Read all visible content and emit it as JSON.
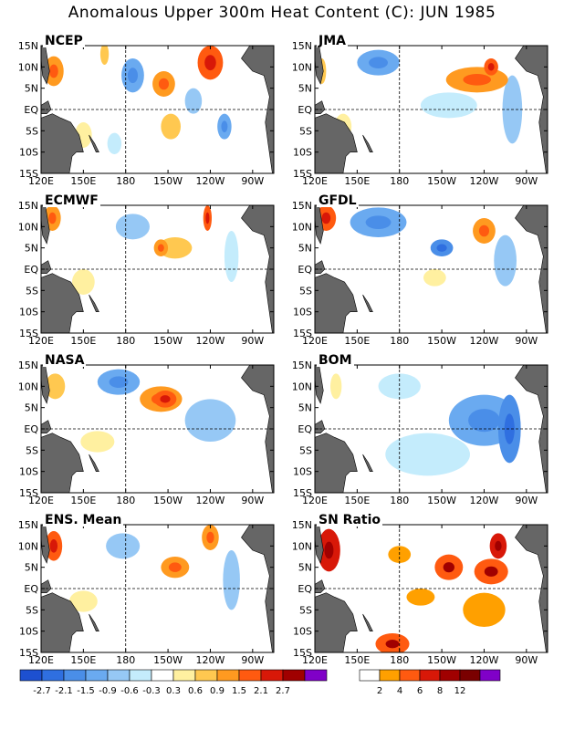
{
  "title": "Anomalous Upper 300m Heat Content (C): JUN 1985",
  "lat_ticks": [
    "15N",
    "10N",
    "5N",
    "EQ",
    "5S",
    "10S",
    "15S"
  ],
  "lon_ticks": [
    "120E",
    "150E",
    "180",
    "150W",
    "120W",
    "90W"
  ],
  "panels": [
    {
      "name": "NCEP",
      "blobs": [
        {
          "lon": 129,
          "lat": 9,
          "rx": 7,
          "ry": 3.5,
          "level": 0.9
        },
        {
          "lon": 165,
          "lat": 13,
          "rx": 3,
          "ry": 2.5,
          "level": 0.6
        },
        {
          "lon": 150,
          "lat": -6,
          "rx": 6,
          "ry": 3,
          "level": 0.3
        },
        {
          "lon": 207,
          "lat": 6,
          "rx": 8,
          "ry": 3,
          "level": 0.9
        },
        {
          "lon": 240,
          "lat": 11,
          "rx": 9,
          "ry": 4,
          "level": 1.5
        },
        {
          "lon": 212,
          "lat": -4,
          "rx": 7,
          "ry": 3,
          "level": 0.6
        },
        {
          "lon": 185,
          "lat": 8,
          "rx": 8,
          "ry": 4,
          "level": -0.9
        },
        {
          "lon": 228,
          "lat": 2,
          "rx": 6,
          "ry": 3,
          "level": -0.6
        },
        {
          "lon": 250,
          "lat": -4,
          "rx": 5,
          "ry": 3,
          "level": -0.9
        },
        {
          "lon": 172,
          "lat": -8,
          "rx": 5,
          "ry": 2.5,
          "level": -0.3
        }
      ]
    },
    {
      "name": "JMA",
      "blobs": [
        {
          "lon": 125,
          "lat": 9,
          "rx": 3,
          "ry": 3,
          "level": 0.6
        },
        {
          "lon": 235,
          "lat": 7,
          "rx": 22,
          "ry": 3,
          "level": 0.9
        },
        {
          "lon": 245,
          "lat": 10,
          "rx": 5,
          "ry": 2,
          "level": 1.5
        },
        {
          "lon": 165,
          "lat": 11,
          "rx": 15,
          "ry": 3,
          "level": -0.9
        },
        {
          "lon": 215,
          "lat": 1,
          "rx": 20,
          "ry": 3,
          "level": -0.3
        },
        {
          "lon": 260,
          "lat": 0,
          "rx": 7,
          "ry": 8,
          "level": -0.6
        },
        {
          "lon": 140,
          "lat": -4,
          "rx": 6,
          "ry": 3,
          "level": 0.3
        }
      ]
    },
    {
      "name": "ECMWF",
      "blobs": [
        {
          "lon": 128,
          "lat": 12,
          "rx": 6,
          "ry": 3,
          "level": 0.9
        },
        {
          "lon": 215,
          "lat": 5,
          "rx": 12,
          "ry": 2.5,
          "level": 0.6
        },
        {
          "lon": 205,
          "lat": 5,
          "rx": 5,
          "ry": 2,
          "level": 0.9
        },
        {
          "lon": 238,
          "lat": 12,
          "rx": 3,
          "ry": 3,
          "level": 1.5
        },
        {
          "lon": 185,
          "lat": 10,
          "rx": 12,
          "ry": 3,
          "level": -0.6
        },
        {
          "lon": 255,
          "lat": 3,
          "rx": 5,
          "ry": 6,
          "level": -0.3
        },
        {
          "lon": 150,
          "lat": -3,
          "rx": 8,
          "ry": 3,
          "level": 0.3
        }
      ]
    },
    {
      "name": "GFDL",
      "blobs": [
        {
          "lon": 128,
          "lat": 12,
          "rx": 7,
          "ry": 3,
          "level": 1.5
        },
        {
          "lon": 240,
          "lat": 9,
          "rx": 8,
          "ry": 3,
          "level": 0.9
        },
        {
          "lon": 165,
          "lat": 11,
          "rx": 20,
          "ry": 3.5,
          "level": -0.9
        },
        {
          "lon": 210,
          "lat": 5,
          "rx": 8,
          "ry": 2,
          "level": -1.5
        },
        {
          "lon": 255,
          "lat": 2,
          "rx": 8,
          "ry": 6,
          "level": -0.6
        },
        {
          "lon": 205,
          "lat": -2,
          "rx": 8,
          "ry": 2,
          "level": 0.3
        }
      ]
    },
    {
      "name": "NASA",
      "blobs": [
        {
          "lon": 130,
          "lat": 10,
          "rx": 7,
          "ry": 3,
          "level": 0.6
        },
        {
          "lon": 205,
          "lat": 7,
          "rx": 15,
          "ry": 3,
          "level": 0.9
        },
        {
          "lon": 208,
          "lat": 7,
          "rx": 8,
          "ry": 2,
          "level": 1.5
        },
        {
          "lon": 175,
          "lat": 11,
          "rx": 15,
          "ry": 3,
          "level": -0.9
        },
        {
          "lon": 240,
          "lat": 2,
          "rx": 18,
          "ry": 5,
          "level": -0.6
        },
        {
          "lon": 160,
          "lat": -3,
          "rx": 12,
          "ry": 2.5,
          "level": 0.3
        }
      ]
    },
    {
      "name": "BOM",
      "blobs": [
        {
          "lon": 135,
          "lat": 10,
          "rx": 4,
          "ry": 3,
          "level": 0.3
        },
        {
          "lon": 240,
          "lat": 2,
          "rx": 25,
          "ry": 6,
          "level": -0.9
        },
        {
          "lon": 258,
          "lat": 0,
          "rx": 8,
          "ry": 8,
          "level": -1.5
        },
        {
          "lon": 200,
          "lat": -6,
          "rx": 30,
          "ry": 5,
          "level": -0.3
        },
        {
          "lon": 180,
          "lat": 10,
          "rx": 15,
          "ry": 3,
          "level": -0.3
        }
      ]
    },
    {
      "name": "ENS. Mean",
      "blobs": [
        {
          "lon": 129,
          "lat": 10,
          "rx": 6,
          "ry": 3.5,
          "level": 1.5
        },
        {
          "lon": 215,
          "lat": 5,
          "rx": 10,
          "ry": 2.5,
          "level": 0.9
        },
        {
          "lon": 240,
          "lat": 12,
          "rx": 6,
          "ry": 3,
          "level": 0.9
        },
        {
          "lon": 178,
          "lat": 10,
          "rx": 12,
          "ry": 3,
          "level": -0.6
        },
        {
          "lon": 255,
          "lat": 2,
          "rx": 6,
          "ry": 7,
          "level": -0.6
        },
        {
          "lon": 150,
          "lat": -3,
          "rx": 10,
          "ry": 2.5,
          "level": 0.3
        }
      ]
    },
    {
      "name": "SN Ratio",
      "blobs": [
        {
          "lon": 130,
          "lat": 9,
          "rx": 8,
          "ry": 5,
          "level": 6
        },
        {
          "lon": 215,
          "lat": 5,
          "rx": 10,
          "ry": 3,
          "level": 4
        },
        {
          "lon": 245,
          "lat": 4,
          "rx": 12,
          "ry": 3,
          "level": 4
        },
        {
          "lon": 250,
          "lat": 10,
          "rx": 6,
          "ry": 3,
          "level": 6
        },
        {
          "lon": 195,
          "lat": -2,
          "rx": 10,
          "ry": 2,
          "level": 2
        },
        {
          "lon": 175,
          "lat": -13,
          "rx": 12,
          "ry": 2.5,
          "level": 4
        },
        {
          "lon": 240,
          "lat": -5,
          "rx": 15,
          "ry": 4,
          "level": 2
        },
        {
          "lon": 180,
          "lat": 8,
          "rx": 8,
          "ry": 2,
          "level": 2
        }
      ]
    }
  ],
  "colorbar_anomaly": {
    "labels": [
      "-2.7",
      "-2.1",
      "-1.5",
      "-0.9",
      "-0.6",
      "-0.3",
      "0.3",
      "0.6",
      "0.9",
      "1.5",
      "2.1",
      "2.7"
    ],
    "colors": [
      "#1d50d0",
      "#2f6fe0",
      "#4a8ee8",
      "#6aaaf0",
      "#96c8f5",
      "#c4ecfc",
      "#ffffff",
      "#fff0a0",
      "#ffc850",
      "#ff9a20",
      "#ff5a10",
      "#d81808",
      "#a00000",
      "#8000c8"
    ]
  },
  "colorbar_sn": {
    "labels": [
      "2",
      "4",
      "6",
      "8",
      "12"
    ],
    "colors": [
      "#ffffff",
      "#ffa000",
      "#ff5a10",
      "#d81808",
      "#a00000",
      "#7a0000",
      "#8000c8"
    ]
  },
  "anomaly_levels": [
    -2.7,
    -2.1,
    -1.5,
    -0.9,
    -0.6,
    -0.3,
    0.3,
    0.6,
    0.9,
    1.5,
    2.1,
    2.7
  ],
  "sn_levels": [
    2,
    4,
    6,
    8,
    12
  ]
}
